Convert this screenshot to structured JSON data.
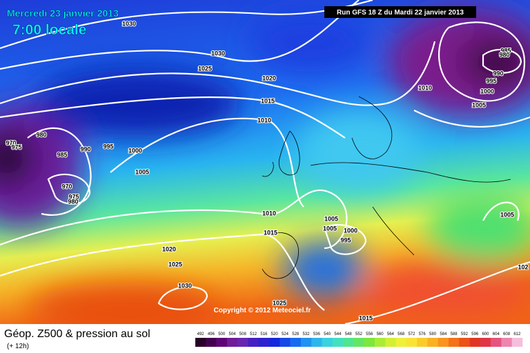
{
  "header": {
    "date": "Mercredi 23 janvier 2013",
    "time": "7:00 locale",
    "run": "Run GFS 18 Z du Mardi 22 janvier 2013"
  },
  "copyright": "Copyright © 2012 Meteociel.fr",
  "footer": {
    "title": "Géop. Z500 & pression au sol",
    "lead": "(+ 12h)"
  },
  "scale": [
    492,
    496,
    500,
    504,
    508,
    512,
    516,
    520,
    524,
    528,
    532,
    536,
    540,
    544,
    548,
    552,
    556,
    560,
    564,
    568,
    572,
    576,
    580,
    584,
    588,
    592,
    596,
    600,
    604,
    608,
    612
  ],
  "isobars": [
    1030,
    1030,
    1025,
    1020,
    1015,
    1010,
    980,
    970,
    975,
    985,
    990,
    995,
    1000,
    1005,
    970,
    975,
    980,
    1010,
    1015,
    1005,
    1005,
    1000,
    995,
    1020,
    1025,
    1030,
    1025,
    1015,
    985,
    980,
    990,
    995,
    1000,
    1005,
    1010,
    1005,
    102
  ]
}
